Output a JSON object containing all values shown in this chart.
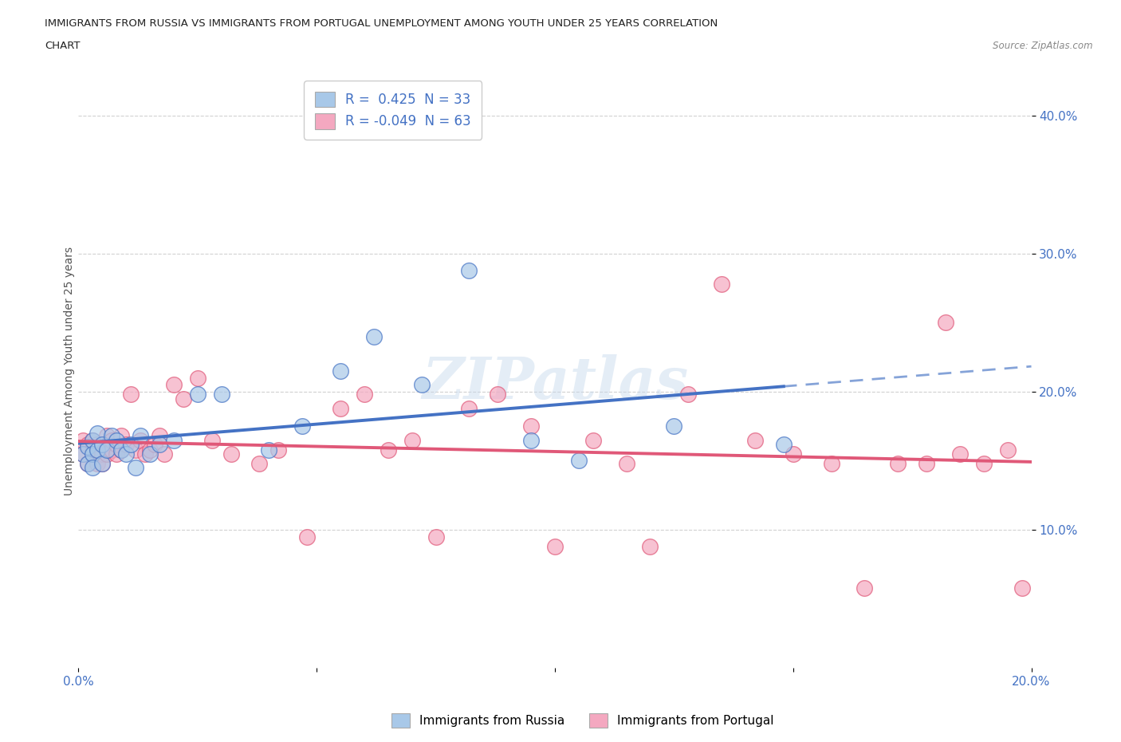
{
  "title_line1": "IMMIGRANTS FROM RUSSIA VS IMMIGRANTS FROM PORTUGAL UNEMPLOYMENT AMONG YOUTH UNDER 25 YEARS CORRELATION",
  "title_line2": "CHART",
  "source": "Source: ZipAtlas.com",
  "ylabel": "Unemployment Among Youth under 25 years",
  "xlim": [
    0.0,
    0.2
  ],
  "ylim": [
    0.0,
    0.43
  ],
  "russia_R": 0.425,
  "russia_N": 33,
  "portugal_R": -0.049,
  "portugal_N": 63,
  "russia_color": "#a8c8e8",
  "russia_line_color": "#4472c4",
  "portugal_color": "#f4a8c0",
  "portugal_line_color": "#e05878",
  "watermark": "ZIPatlas",
  "russia_x": [
    0.001,
    0.002,
    0.002,
    0.003,
    0.003,
    0.003,
    0.004,
    0.004,
    0.005,
    0.005,
    0.006,
    0.007,
    0.008,
    0.009,
    0.01,
    0.011,
    0.012,
    0.013,
    0.015,
    0.017,
    0.02,
    0.025,
    0.03,
    0.04,
    0.047,
    0.055,
    0.062,
    0.072,
    0.082,
    0.095,
    0.105,
    0.125,
    0.148
  ],
  "russia_y": [
    0.155,
    0.148,
    0.16,
    0.165,
    0.155,
    0.145,
    0.158,
    0.17,
    0.148,
    0.162,
    0.158,
    0.168,
    0.165,
    0.158,
    0.155,
    0.162,
    0.145,
    0.168,
    0.155,
    0.162,
    0.165,
    0.198,
    0.198,
    0.158,
    0.175,
    0.215,
    0.24,
    0.205,
    0.288,
    0.165,
    0.15,
    0.175,
    0.162
  ],
  "portugal_x": [
    0.001,
    0.001,
    0.002,
    0.002,
    0.003,
    0.003,
    0.003,
    0.004,
    0.004,
    0.004,
    0.005,
    0.005,
    0.005,
    0.006,
    0.006,
    0.007,
    0.007,
    0.008,
    0.008,
    0.009,
    0.009,
    0.01,
    0.011,
    0.012,
    0.013,
    0.014,
    0.015,
    0.016,
    0.017,
    0.018,
    0.02,
    0.022,
    0.025,
    0.028,
    0.032,
    0.038,
    0.042,
    0.048,
    0.055,
    0.06,
    0.065,
    0.07,
    0.075,
    0.082,
    0.088,
    0.095,
    0.1,
    0.108,
    0.115,
    0.12,
    0.128,
    0.135,
    0.142,
    0.15,
    0.158,
    0.165,
    0.172,
    0.178,
    0.185,
    0.19,
    0.195,
    0.198,
    0.182
  ],
  "portugal_y": [
    0.155,
    0.165,
    0.148,
    0.162,
    0.158,
    0.165,
    0.155,
    0.148,
    0.158,
    0.162,
    0.155,
    0.148,
    0.162,
    0.155,
    0.168,
    0.158,
    0.165,
    0.155,
    0.162,
    0.158,
    0.168,
    0.162,
    0.198,
    0.158,
    0.165,
    0.155,
    0.158,
    0.162,
    0.168,
    0.155,
    0.205,
    0.195,
    0.21,
    0.165,
    0.155,
    0.148,
    0.158,
    0.095,
    0.188,
    0.198,
    0.158,
    0.165,
    0.095,
    0.188,
    0.198,
    0.175,
    0.088,
    0.165,
    0.148,
    0.088,
    0.198,
    0.278,
    0.165,
    0.155,
    0.148,
    0.058,
    0.148,
    0.148,
    0.155,
    0.148,
    0.158,
    0.058,
    0.25
  ]
}
